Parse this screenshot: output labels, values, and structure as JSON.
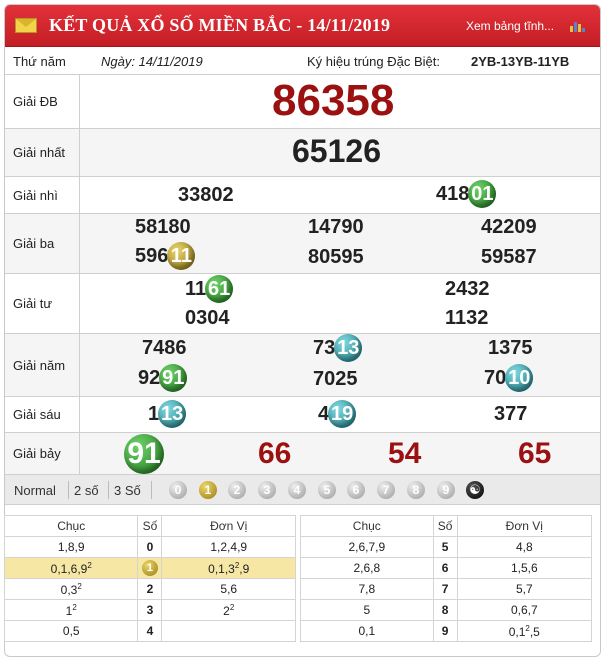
{
  "header": {
    "title": "KẾT QUẢ XỔ SỐ MIỀN BẮC - 14/11/2019",
    "link": "Xem bảng tĩnh...",
    "colors": {
      "bar": "#c31e25",
      "number_red": "#9b1111"
    }
  },
  "info": {
    "thu": "Thứ năm",
    "ngay": "Ngày: 14/11/2019",
    "kyhieu_label": "Ký hiệu trúng Đặc Biệt:",
    "kyhieu_code": "2YB-13YB-11YB"
  },
  "prizes": {
    "db": {
      "label": "Giải ĐB",
      "value": "86358"
    },
    "nhat": {
      "label": "Giải nhất",
      "value": "65126"
    },
    "nhi": {
      "label": "Giải nhì",
      "v1": "33802",
      "v2_rest": "418",
      "v2_ball": "01"
    },
    "ba": {
      "label": "Giải ba",
      "v1": "58180",
      "v2": "14790",
      "v3": "42209",
      "v4_rest": "596",
      "v4_ball": "11",
      "v5": "80595",
      "v6": "59587"
    },
    "tu": {
      "label": "Giải tư",
      "v1_rest": "11",
      "v1_ball": "61",
      "v2": "2432",
      "v3": "0304",
      "v4": "1132"
    },
    "nam": {
      "label": "Giải năm",
      "v1": "7486",
      "v2_rest": "73",
      "v2_ball": "13",
      "v3": "1375",
      "v4_rest": "92",
      "v4_ball": "91",
      "v5": "7025",
      "v6_rest": "70",
      "v6_ball": "10"
    },
    "sau": {
      "label": "Giải sáu",
      "v1_rest": "1",
      "v1_ball": "13",
      "v2_rest": "4",
      "v2_ball": "19",
      "v3": "377"
    },
    "bay": {
      "label": "Giải bảy",
      "v1_ball": "91",
      "v2": "66",
      "v3": "54",
      "v4": "65"
    }
  },
  "filters": {
    "normal": "Normal",
    "two": "2 số",
    "three": "3 Số",
    "digits": [
      "0",
      "1",
      "2",
      "3",
      "4",
      "5",
      "6",
      "7",
      "8",
      "9"
    ],
    "selected_digit": "1",
    "yin_yang": "☯"
  },
  "loto": {
    "headers": {
      "chuc": "Chục",
      "so": "Số",
      "donvi": "Đơn Vị"
    },
    "left": [
      {
        "chuc": "1,8,9",
        "so": "0",
        "donvi": "1,2,4,9"
      },
      {
        "chuc": "0,1,6,9",
        "chuc_sup": "2",
        "so": "1",
        "donvi": "0,1,3",
        "donvi_sup": "2",
        "donvi_tail": ",9",
        "highlight": true
      },
      {
        "chuc": "0,3",
        "chuc_sup": "2",
        "so": "2",
        "donvi": "5,6"
      },
      {
        "chuc": "1",
        "chuc_sup": "2",
        "so": "3",
        "donvi": "2",
        "donvi_sup": "2"
      },
      {
        "chuc": "0,5",
        "so": "4",
        "donvi": ""
      }
    ],
    "right": [
      {
        "chuc": "2,6,7,9",
        "so": "5",
        "donvi": "4,8"
      },
      {
        "chuc": "2,6,8",
        "so": "6",
        "donvi": "1,5,6"
      },
      {
        "chuc": "7,8",
        "so": "7",
        "donvi": "5,7"
      },
      {
        "chuc": "5",
        "so": "8",
        "donvi": "0,6,7"
      },
      {
        "chuc": "0,1",
        "so": "9",
        "donvi": "0,1",
        "donvi_sup": "2",
        "donvi_tail": ",5"
      }
    ]
  }
}
